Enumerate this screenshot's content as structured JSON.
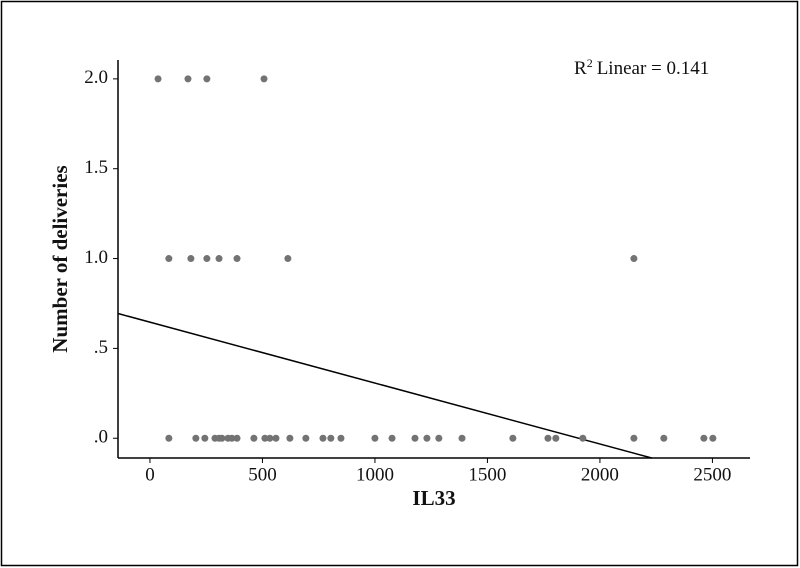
{
  "chart_data": {
    "type": "scatter",
    "x_label": "IL33",
    "y_label": "Number of deliveries",
    "annotation": {
      "base": "R",
      "superscript": "2",
      "text": "Linear = 0.141"
    },
    "color": "#737373",
    "x": [
      36,
      169,
      253,
      507,
      84,
      182,
      253,
      307,
      387,
      613,
      2151,
      84,
      204,
      244,
      289,
      307,
      320,
      347,
      364,
      387,
      462,
      511,
      533,
      560,
      622,
      693,
      769,
      804,
      849,
      1000,
      1076,
      1178,
      1231,
      1284,
      1387,
      1613,
      1769,
      1804,
      1924,
      2151,
      2284,
      2462,
      2502
    ],
    "values": [
      2,
      2,
      2,
      2,
      1,
      1,
      1,
      1,
      1,
      1,
      1,
      0,
      0,
      0,
      0,
      0,
      0,
      0,
      0,
      0,
      0,
      0,
      0,
      0,
      0,
      0,
      0,
      0,
      0,
      0,
      0,
      0,
      0,
      0,
      0,
      0,
      0,
      0,
      0,
      0,
      0,
      0,
      0
    ],
    "fit_line": {
      "intercept": 0.646,
      "slope": -0.000339
    },
    "xlim": [
      -142,
      2667
    ],
    "ylim": [
      -0.11,
      2.105
    ],
    "xticks": [
      0,
      500,
      1000,
      1500,
      2000,
      2500
    ],
    "yticks": [
      {
        "value": 0,
        "label": ".0"
      },
      {
        "value": 0.5,
        "label": ".5"
      },
      {
        "value": 1,
        "label": "1.0"
      },
      {
        "value": 1.5,
        "label": "1.5"
      },
      {
        "value": 2,
        "label": "2.0"
      }
    ]
  }
}
